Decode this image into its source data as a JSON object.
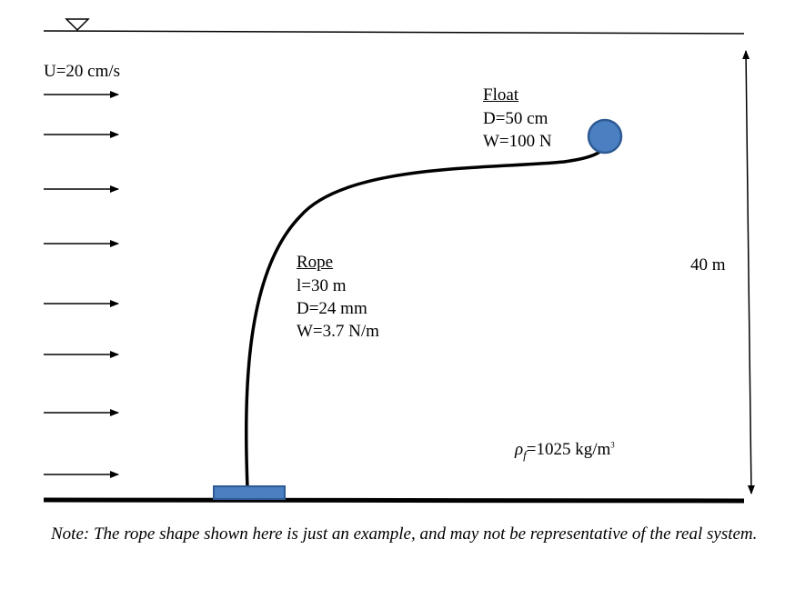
{
  "flow": {
    "label": "U=20 cm/s",
    "arrow_count": 8
  },
  "float": {
    "title": "Float",
    "diameter": "D=50 cm",
    "weight": "W=100 N",
    "color": "#4a7fc1"
  },
  "rope": {
    "title": "Rope",
    "length": "l=30 m",
    "diameter": "D=24 mm",
    "weight": "W=3.7 N/m"
  },
  "depth": {
    "label": "40 m"
  },
  "fluid_density": {
    "symbol": "ρ",
    "subscript": "f",
    "value": "=1025 kg/m",
    "exponent": "3"
  },
  "anchor": {
    "color": "#4a7fc1"
  },
  "note": "Note: The rope shape shown here is just an example, and may not be representative of the real system."
}
